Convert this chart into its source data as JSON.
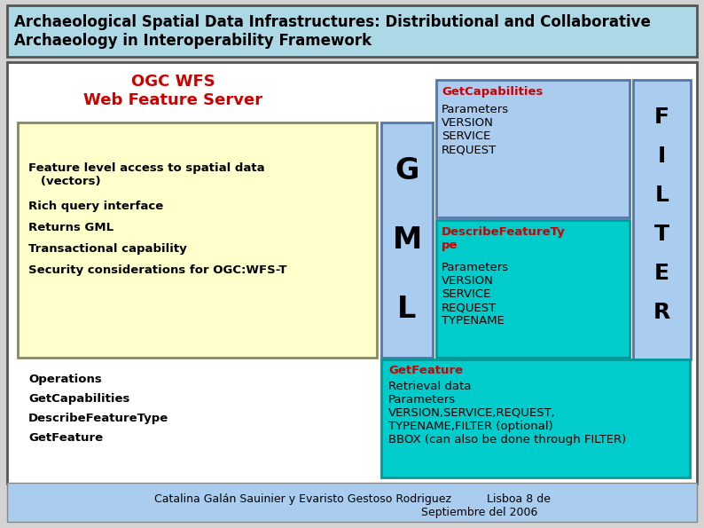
{
  "title_line1": "Archaeological Spatial Data Infrastructures: Distributional and Collaborative",
  "title_line2": "Archaeology in Interoperability Framework",
  "title_bg": "#add8e6",
  "title_color": "#000000",
  "title_fontsize": 12,
  "bg_color": "#d3d3d3",
  "main_bg": "#ffffff",
  "ogc_title": "OGC WFS\nWeb Feature Server",
  "ogc_color": "#cc0000",
  "ogc_fontsize": 13,
  "yellow_box_color": "#ffffcc",
  "light_blue_box_color": "#aaccee",
  "cyan_box_color": "#00cccc",
  "footer_bg": "#aaccee",
  "bullet_items": [
    "Feature level access to spatial data\n   (vectors)",
    "Rich query interface",
    "Returns GML",
    "Transactional capability",
    "Security considerations for OGC:WFS-T"
  ],
  "operations_items": [
    "Operations",
    "GetCapabilities",
    "DescribeFeatureType",
    "GetFeature"
  ],
  "gml_letters": [
    "G",
    "M",
    "L"
  ],
  "gml_fontsize": 24,
  "get_capabilities_title": "GetCapabilities",
  "get_capabilities_content": "Parameters\nVERSION\nSERVICE\nREQUEST",
  "describe_feature_title": "DescribeFeatureTy\npe",
  "describe_feature_content": "Parameters\nVERSION\nSERVICE\nREQUEST\nTYPENAME",
  "filter_letters": [
    "F",
    "I",
    "L",
    "T",
    "E",
    "R"
  ],
  "filter_fontsize": 18,
  "get_feature_title": "GetFeature",
  "get_feature_content": "Retrieval data\nParameters\nVERSION,SERVICE,REQUEST,\nTYPENAME,FILTER (optional)\nBBOX (can also be done through FILTER)",
  "footer_line1": "Catalina Galán Sauinier y Evaristo Gestoso Rodriguez          Lisboa 8 de",
  "footer_line2": "                                                                        Septiembre del 2006",
  "red_color": "#cc0000",
  "black_color": "#000000",
  "text_fontsize": 9.5,
  "bullet_fontsize": 9.5
}
